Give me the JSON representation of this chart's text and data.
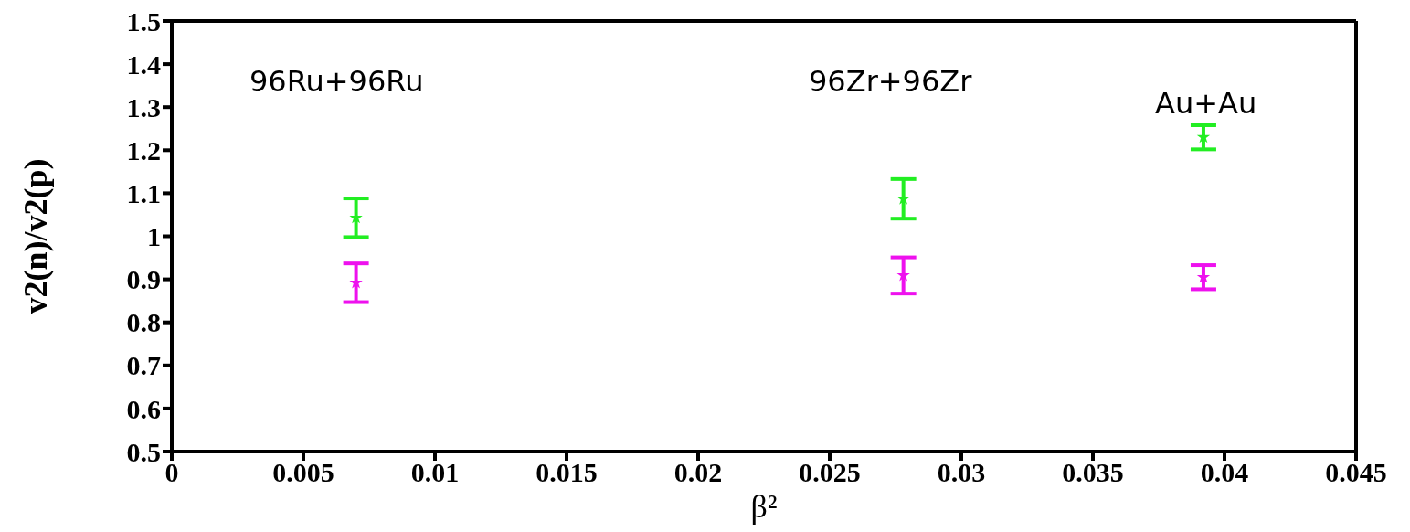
{
  "chart_data": {
    "type": "scatter",
    "xlabel": "β²",
    "ylabel": "v2(n)/v2(p)",
    "x": [
      0.007,
      0.0278,
      0.0392
    ],
    "series": [
      {
        "color": "#22ee22",
        "values": [
          1.043,
          1.087,
          1.23
        ],
        "errors": [
          0.045,
          0.046,
          0.028
        ]
      },
      {
        "color": "#ee11ee",
        "values": [
          0.892,
          0.909,
          0.905
        ],
        "errors": [
          0.045,
          0.042,
          0.028
        ]
      }
    ],
    "marker": "star",
    "xlim": [
      0,
      0.045
    ],
    "xticks": [
      0,
      0.005,
      0.01,
      0.015,
      0.02,
      0.025,
      0.03,
      0.035,
      0.04,
      0.045
    ],
    "ylim": [
      0.5,
      1.5
    ],
    "yticks": [
      0.5,
      0.6,
      0.7,
      0.8,
      0.9,
      1,
      1.1,
      1.2,
      1.3,
      1.4,
      1.5
    ],
    "annotations": [
      "96Ru+96Ru",
      "96Zr+96Zr",
      "Au+Au"
    ]
  }
}
